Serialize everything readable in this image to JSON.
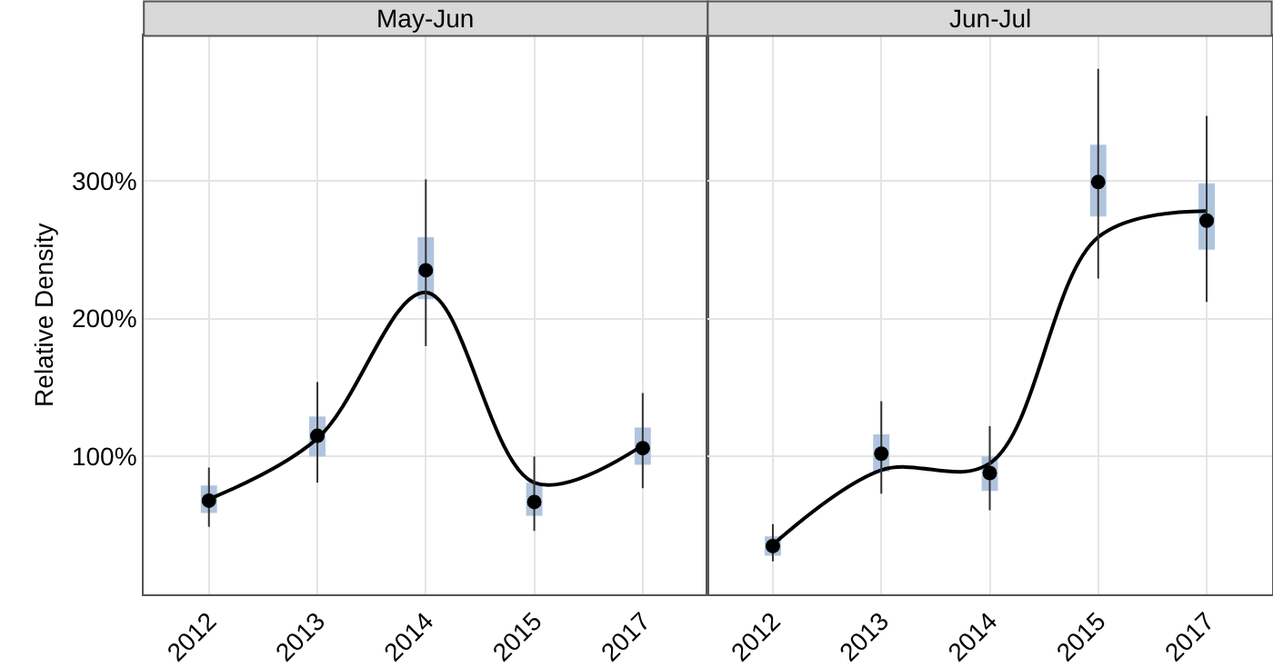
{
  "chart_data": [
    {
      "type": "scatter",
      "title": "May-Jun",
      "ylabel": "Relative Density",
      "categories": [
        "2012",
        "2013",
        "2014",
        "2015",
        "2017"
      ],
      "ylim": [
        0,
        405
      ],
      "yticks": [
        {
          "value": 100,
          "label": "100%"
        },
        {
          "value": 200,
          "label": "200%"
        },
        {
          "value": 300,
          "label": "300%"
        }
      ],
      "grid": true,
      "marker": "circle",
      "series": [
        {
          "type": "bar",
          "color": "#b0c4de",
          "base": [
            59,
            100,
            214,
            57,
            94
          ],
          "values": [
            20,
            29,
            45,
            24,
            27
          ]
        },
        {
          "type": "line",
          "marker": "none",
          "color": "#000000",
          "values": [
            69,
            113,
            219,
            81,
            108
          ]
        },
        {
          "color": "#000000",
          "values": [
            68,
            115,
            235,
            67,
            106
          ],
          "errors": [
            [
              49,
              92
            ],
            [
              81,
              154
            ],
            [
              180,
              301
            ],
            [
              46,
              100
            ],
            [
              77,
              146
            ]
          ]
        }
      ]
    },
    {
      "type": "scatter",
      "title": "Jun-Jul",
      "categories": [
        "2012",
        "2013",
        "2014",
        "2015",
        "2017"
      ],
      "ylim": [
        0,
        405
      ],
      "grid": true,
      "marker": "circle",
      "tick_labels": "x",
      "series": [
        {
          "type": "bar",
          "color": "#b0c4de",
          "base": [
            28,
            89,
            75,
            274,
            250
          ],
          "values": [
            14,
            27,
            25,
            52,
            48
          ]
        },
        {
          "type": "line",
          "marker": "none",
          "color": "#000000",
          "values": [
            36,
            90,
            95,
            259,
            278
          ]
        },
        {
          "color": "#000000",
          "values": [
            35,
            102,
            88,
            299,
            271
          ],
          "errors": [
            [
              24,
              51
            ],
            [
              73,
              140
            ],
            [
              61,
              122
            ],
            [
              229,
              381
            ],
            [
              212,
              347
            ]
          ]
        }
      ]
    }
  ]
}
